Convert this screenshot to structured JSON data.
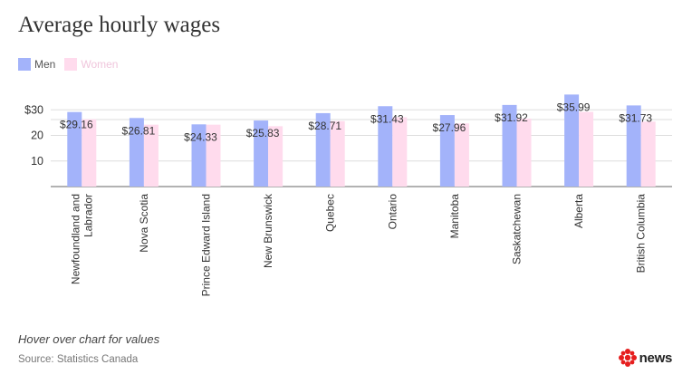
{
  "header": {
    "title": "Average hourly wages"
  },
  "footer": {
    "note": "Hover over chart for values",
    "source": "Source: Statistics Canada",
    "logo_text": "news"
  },
  "colors": {
    "men": "#a3b3fa",
    "women": "#ffdbed",
    "women_label": "#f0c6dc",
    "grid": "#dddddd",
    "axis": "#666666",
    "logo_red": "#e61e1e"
  },
  "chart_data": {
    "type": "bar",
    "title": "Average hourly wages",
    "categories": [
      "Newfoundland and Labrador",
      "Nova Scotia",
      "Prince Edward Island",
      "New Brunswick",
      "Quebec",
      "Ontario",
      "Manitoba",
      "Saskatchewan",
      "Alberta",
      "British Columbia"
    ],
    "category_lines": [
      [
        "Newfoundland and",
        "Labrador"
      ],
      [
        "Nova Scotia"
      ],
      [
        "Prince Edward Island"
      ],
      [
        "New Brunswick"
      ],
      [
        "Quebec"
      ],
      [
        "Ontario"
      ],
      [
        "Manitoba"
      ],
      [
        "Saskatchewan"
      ],
      [
        "Alberta"
      ],
      [
        "British Columbia"
      ]
    ],
    "series": [
      {
        "name": "Men",
        "values": [
          29.16,
          26.81,
          24.33,
          25.83,
          28.71,
          31.43,
          27.96,
          31.92,
          35.99,
          31.73
        ],
        "labels": [
          "$29.16",
          "$26.81",
          "$24.33",
          "$25.83",
          "$28.71",
          "$31.43",
          "$27.96",
          "$31.92",
          "$35.99",
          "$31.73"
        ]
      },
      {
        "name": "Women",
        "values": [
          26.3,
          24.2,
          24.2,
          23.6,
          25.6,
          27.1,
          24.7,
          26.6,
          29.2,
          25.4
        ]
      }
    ],
    "yticks": [
      10,
      20,
      30
    ],
    "ytick_labels": [
      "10",
      "20",
      "$30"
    ],
    "ylim": [
      0,
      34
    ],
    "legend_position": "top-left",
    "grid": true
  }
}
